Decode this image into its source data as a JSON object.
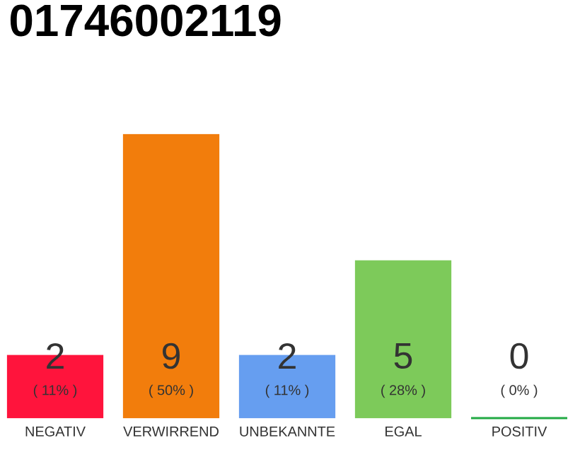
{
  "chart_data": {
    "type": "bar",
    "title": "01746002119",
    "categories": [
      "NEGATIV",
      "VERWIRREND",
      "UNBEKANNTE",
      "EGAL",
      "POSITIV"
    ],
    "values": [
      2,
      9,
      2,
      5,
      0
    ],
    "colors": [
      "#ff143c",
      "#f27d0c",
      "#669ef0",
      "#7dca5a",
      "#22aa44"
    ],
    "value_labels": [
      "2",
      "9",
      "2",
      "5",
      "0"
    ],
    "annotations": [
      "( 11% )",
      "( 50% )",
      "( 11% )",
      "( 28% )",
      "( 0% )"
    ]
  }
}
